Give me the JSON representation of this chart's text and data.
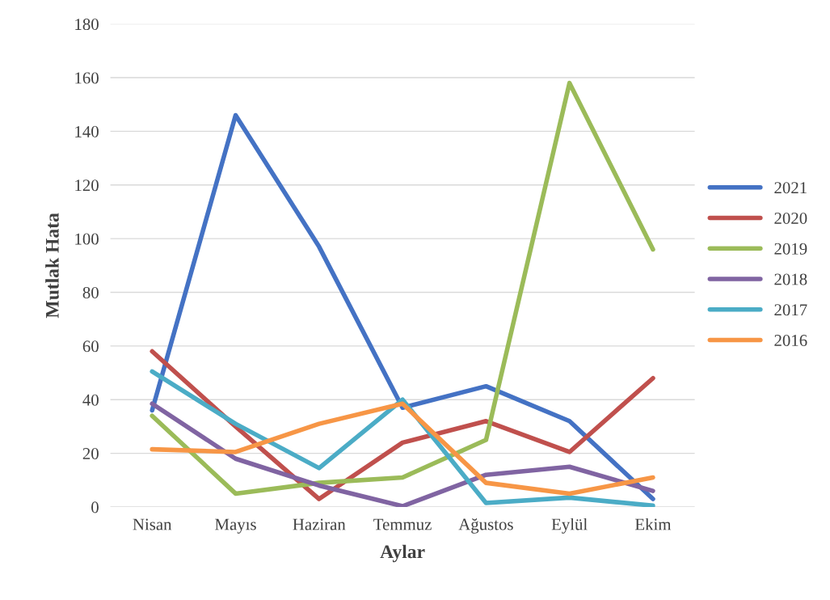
{
  "chart_data": {
    "type": "line",
    "xlabel": "Aylar",
    "ylabel": "Mutlak Hata",
    "categories": [
      "Nisan",
      "Mayıs",
      "Haziran",
      "Temmuz",
      "Ağustos",
      "Eylül",
      "Ekim"
    ],
    "series": [
      {
        "name": "2021",
        "color": "#4472c4",
        "values": [
          36,
          146,
          97,
          37,
          45,
          32,
          3
        ]
      },
      {
        "name": "2020",
        "color": "#c0504d",
        "values": [
          58,
          30,
          3,
          24,
          32,
          20.5,
          48
        ]
      },
      {
        "name": "2019",
        "color": "#9bbb59",
        "values": [
          34,
          5,
          9,
          11,
          25,
          158,
          96
        ]
      },
      {
        "name": "2018",
        "color": "#8064a2",
        "values": [
          38.5,
          18,
          8,
          0.3,
          12,
          15,
          6
        ]
      },
      {
        "name": "2017",
        "color": "#4bacc6",
        "values": [
          50.5,
          31,
          14.5,
          40,
          1.5,
          3.5,
          0.5
        ]
      },
      {
        "name": "2016",
        "color": "#f79646",
        "values": [
          21.5,
          20.5,
          31,
          38.5,
          9,
          5,
          11
        ]
      }
    ],
    "ylim": [
      0,
      180
    ],
    "yticks": [
      0,
      20,
      40,
      60,
      80,
      100,
      120,
      140,
      160,
      180
    ],
    "grid": "y",
    "legend": "right",
    "marker": "none",
    "line_style": "solid"
  }
}
